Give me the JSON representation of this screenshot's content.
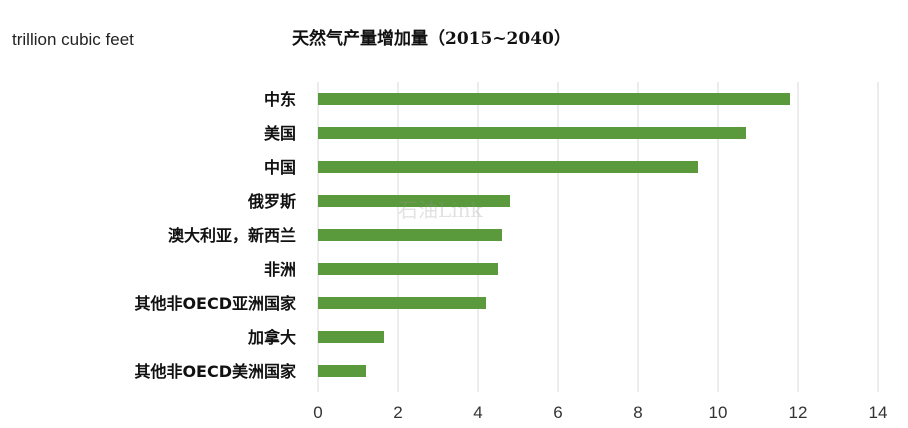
{
  "chart_data": {
    "type": "bar",
    "orientation": "horizontal",
    "title": "天然气产量增加量（2015~2040）",
    "unit_label": "trillion cubic feet",
    "watermark": "石油Link",
    "categories": [
      "中东",
      "美国",
      "中国",
      "俄罗斯",
      "澳大利亚，新西兰",
      "非洲",
      "其他非OECD亚洲国家",
      "加拿大",
      "其他非OECD美洲国家"
    ],
    "values": [
      11.8,
      10.7,
      9.5,
      4.8,
      4.6,
      4.5,
      4.2,
      1.65,
      1.2
    ],
    "xlim": [
      0,
      14
    ],
    "xticks": [
      0,
      2,
      4,
      6,
      8,
      10,
      12,
      14
    ],
    "grid": true,
    "bar_color": "#5b9a3c"
  }
}
